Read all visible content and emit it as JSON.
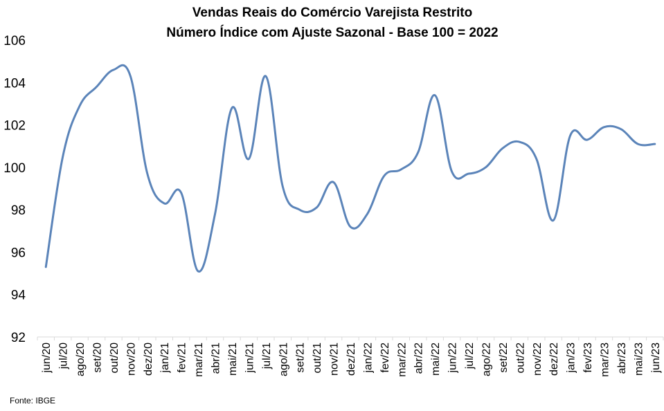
{
  "chart_data": {
    "type": "line",
    "title": "Vendas Reais do Comércio Varejista Restrito",
    "subtitle": "Número Índice com Ajuste Sazonal - Base 100 = 2022",
    "xlabel": "",
    "ylabel": "",
    "ylim": [
      92,
      106
    ],
    "yticks": [
      92,
      94,
      96,
      98,
      100,
      102,
      104,
      106
    ],
    "grid": false,
    "legend": "none",
    "categories": [
      "jun/20",
      "jul/20",
      "ago/20",
      "set/20",
      "out/20",
      "nov/20",
      "dez/20",
      "jan/21",
      "fev/21",
      "mar/21",
      "abr/21",
      "mai/21",
      "jun/21",
      "jul/21",
      "ago/21",
      "set/21",
      "out/21",
      "nov/21",
      "dez/21",
      "jan/22",
      "fev/22",
      "mar/22",
      "abr/22",
      "mai/22",
      "jun/22",
      "jul/22",
      "ago/22",
      "set/22",
      "out/22",
      "nov/22",
      "dez/22",
      "jan/23",
      "fev/23",
      "mar/23",
      "abr/23",
      "mai/23",
      "jun/23"
    ],
    "series": [
      {
        "name": "",
        "color": "#5b84b9",
        "values": [
          95.3,
          100.5,
          102.9,
          103.8,
          104.6,
          104.3,
          99.7,
          98.3,
          98.8,
          95.1,
          97.8,
          102.8,
          100.4,
          104.3,
          99.1,
          98.0,
          98.1,
          99.3,
          97.2,
          97.8,
          99.6,
          99.9,
          100.7,
          103.4,
          99.8,
          99.7,
          100.0,
          100.9,
          101.2,
          100.4,
          97.5,
          101.5,
          101.3,
          101.9,
          101.8,
          101.1,
          101.1
        ]
      }
    ],
    "source": "Fonte: IBGE"
  }
}
